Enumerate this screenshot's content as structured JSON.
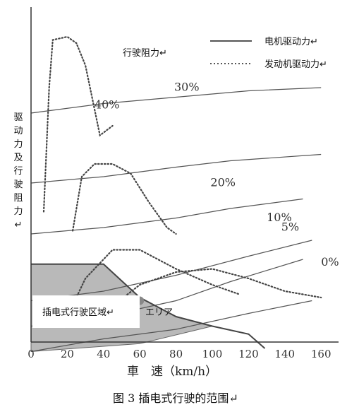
{
  "caption": "图 3  插电式行驶的范围↵",
  "xaxis_label": "車　速（km/h）",
  "yaxis_label": "驱动力及行驶阻力↵",
  "annotation_resistance": "行驶阻力↵",
  "annotation_ev_area": "插电式行驶区域↵",
  "annotation_ev_area_bg": "エリア",
  "colors": {
    "ev_fill": "#b9b9b9",
    "curve": "#555555",
    "point": "#888888"
  },
  "chart_data": {
    "type": "line",
    "title": "图 3  插电式行驶的范围",
    "xlabel": "車　速（km/h）",
    "ylabel": "驱动力及行驶阻力",
    "xlim": [
      0,
      180
    ],
    "ylim": [
      0,
      100
    ],
    "xticks": [
      0,
      20,
      40,
      60,
      80,
      100,
      120,
      140,
      160
    ],
    "legend": {
      "placement": "top-right",
      "entries": [
        {
          "name": "电机驱动力↵",
          "style": "solid"
        },
        {
          "name": "发动机驱动力↵",
          "style": "dotted"
        }
      ]
    },
    "motor_force": {
      "name": "电机驱动力",
      "x": [
        0,
        40,
        60,
        80,
        100,
        120,
        129
      ],
      "y": [
        24.5,
        24.5,
        14,
        8,
        5,
        2.5,
        -2
      ]
    },
    "engine_force": [
      {
        "gear": 1,
        "x": [
          7,
          10,
          12,
          20,
          25,
          30,
          38,
          45
        ],
        "y": [
          41,
          80,
          95,
          96,
          94,
          87,
          65,
          68
        ]
      },
      {
        "gear": 2,
        "x": [
          23,
          28,
          35,
          45,
          55,
          65,
          75,
          80
        ],
        "y": [
          35,
          52,
          56,
          56,
          53,
          44,
          36,
          34
        ]
      },
      {
        "gear": 3,
        "x": [
          20,
          30,
          45,
          60,
          80,
          100,
          115
        ],
        "y": [
          8,
          20,
          29,
          29,
          23,
          18,
          15
        ]
      },
      {
        "gear": 4,
        "x": [
          42,
          60,
          80,
          100,
          120,
          140,
          160
        ],
        "y": [
          10,
          18,
          22,
          23,
          20,
          16,
          14
        ]
      }
    ],
    "resistance_curves": [
      {
        "label": "40%",
        "x": [
          0,
          40,
          80,
          120,
          160
        ],
        "y": [
          72,
          75,
          77,
          79,
          80
        ],
        "label_pos": [
          35,
          73.5
        ]
      },
      {
        "label": "30%",
        "x": [
          0,
          40,
          80,
          110,
          160
        ],
        "y": [
          50,
          52,
          55,
          57,
          59
        ],
        "label_pos": [
          79,
          79
        ]
      },
      {
        "label": "20%",
        "x": [
          0,
          40,
          80,
          110,
          150
        ],
        "y": [
          34,
          36,
          39,
          42,
          45
        ],
        "label_pos": [
          99,
          49
        ]
      },
      {
        "label": "10%",
        "x": [
          0,
          40,
          80,
          120,
          155
        ],
        "y": [
          13,
          16,
          21,
          27,
          32
        ],
        "label_pos": [
          130,
          38
        ]
      },
      {
        "label": "5%",
        "x": [
          0,
          40,
          80,
          110,
          150
        ],
        "y": [
          5,
          8,
          13,
          19,
          26
        ],
        "label_pos": [
          138,
          35
        ]
      },
      {
        "label": "0%",
        "x": [
          0,
          40,
          80,
          120,
          155
        ],
        "y": [
          -3,
          1,
          4,
          9,
          13
        ],
        "label_pos": [
          160,
          24
        ]
      }
    ],
    "ev_region": {
      "label": "插电式行驶区域",
      "x": [
        0,
        40,
        60,
        80,
        100,
        60,
        0
      ],
      "y": [
        24.5,
        24.5,
        14,
        8,
        5,
        -0.5,
        -3
      ]
    },
    "marker": {
      "x": 60,
      "y": 13
    }
  }
}
